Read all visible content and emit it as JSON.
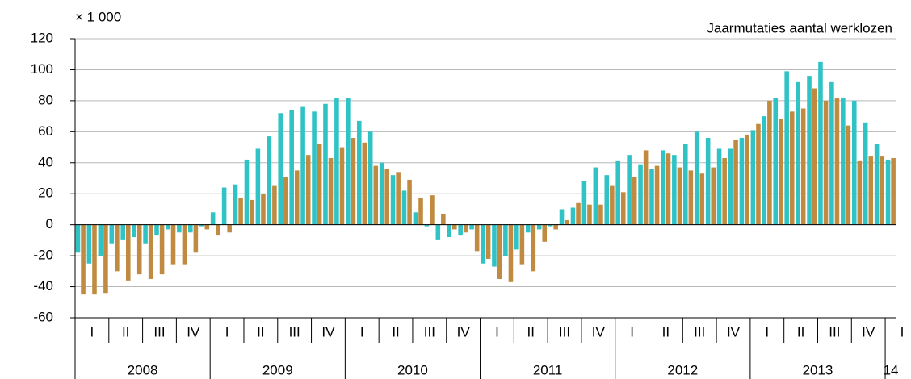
{
  "chart_data": {
    "type": "bar",
    "title": "Jaarmutaties aantal werklozen",
    "unit_label": "× 1 000",
    "quarters": [
      "I",
      "II",
      "III",
      "IV",
      "I",
      "II",
      "III",
      "IV",
      "I",
      "II",
      "III",
      "IV",
      "I",
      "II",
      "III",
      "IV",
      "I",
      "II",
      "III",
      "IV",
      "I",
      "II",
      "III",
      "IV",
      "I"
    ],
    "years": [
      "2008",
      "2009",
      "2010",
      "2011",
      "2012",
      "2013",
      "14"
    ],
    "series": [
      {
        "color": "#2fc3c6",
        "values": [
          -18,
          -25,
          -20,
          -12,
          -10,
          -8,
          -12,
          -7,
          -3,
          -5,
          -5,
          -1,
          8,
          24,
          26,
          42,
          49,
          57,
          72,
          74,
          76,
          73,
          78,
          82,
          82,
          67,
          60,
          40,
          32,
          22,
          8,
          -1,
          -10,
          -8,
          -7,
          -3,
          -25,
          -27,
          -20,
          -16,
          -5,
          -3,
          -1,
          10,
          11,
          28,
          37,
          32,
          41,
          45,
          39,
          36,
          48,
          45,
          52,
          60,
          56,
          49,
          49,
          56,
          61,
          70,
          82,
          99,
          92,
          96,
          105,
          92,
          82,
          80,
          66,
          52,
          42
        ]
      },
      {
        "color": "#c08b40",
        "values": [
          -45,
          -45,
          -44,
          -30,
          -36,
          -32,
          -35,
          -32,
          -26,
          -26,
          -18,
          -3,
          -7,
          -5,
          17,
          16,
          20,
          25,
          31,
          35,
          45,
          52,
          43,
          50,
          56,
          53,
          38,
          36,
          34,
          29,
          17,
          19,
          7,
          -3,
          -5,
          -17,
          -22,
          -35,
          -37,
          -26,
          -30,
          -11,
          -3,
          3,
          14,
          13,
          13,
          25,
          21,
          31,
          48,
          38,
          46,
          37,
          35,
          33,
          37,
          43,
          55,
          58,
          65,
          80,
          68,
          73,
          75,
          88,
          80,
          82,
          64,
          41,
          44,
          44,
          43
        ]
      }
    ],
    "ylim": [
      -60,
      120
    ],
    "yticks": [
      -60,
      -40,
      -20,
      0,
      20,
      40,
      60,
      80,
      100,
      120
    ],
    "grid": true
  }
}
